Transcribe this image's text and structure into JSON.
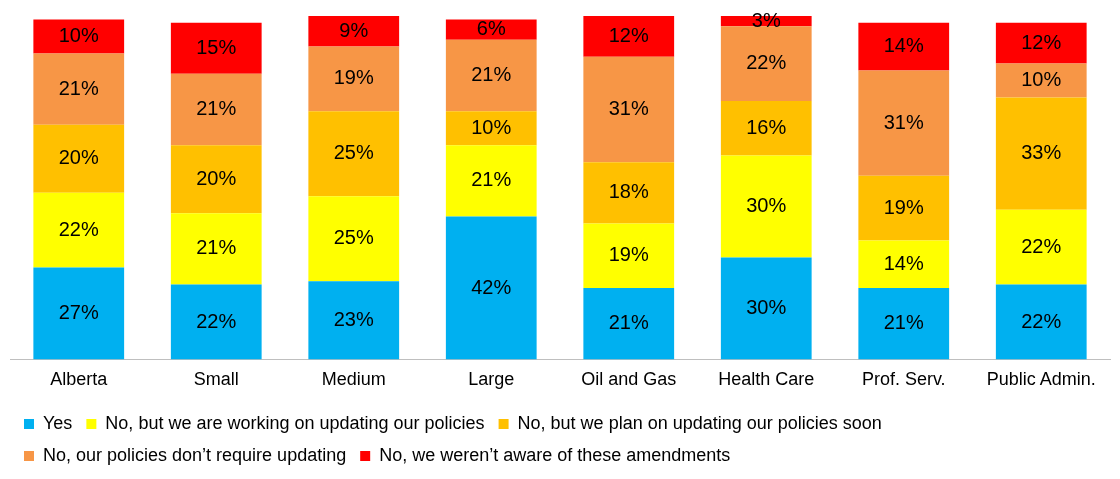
{
  "chart_data": {
    "type": "bar",
    "stacked": true,
    "legend": "bottom",
    "grid": false,
    "tick_labels": "x",
    "categories": [
      "Alberta",
      "Small",
      "Medium",
      "Large",
      "Oil and Gas",
      "Health Care",
      "Prof. Serv.",
      "Public Admin."
    ],
    "series": [
      {
        "name": "Yes",
        "color": "#00b0f0",
        "values": [
          27,
          22,
          23,
          42,
          21,
          30,
          21,
          22
        ],
        "value_labels": [
          "27%",
          "22%",
          "23%",
          "42%",
          "21%",
          "30%",
          "21%",
          "22%"
        ]
      },
      {
        "name": "No, but we are working on updating our policies",
        "color": "#ffff00",
        "values": [
          22,
          21,
          25,
          21,
          19,
          30,
          14,
          22
        ],
        "value_labels": [
          "22%",
          "21%",
          "25%",
          "21%",
          "19%",
          "30%",
          "14%",
          "22%"
        ]
      },
      {
        "name": "No, but we plan on updating our policies soon",
        "color": "#ffc000",
        "values": [
          20,
          20,
          25,
          10,
          18,
          16,
          19,
          33
        ],
        "value_labels": [
          "20%",
          "20%",
          "25%",
          "10%",
          "18%",
          "16%",
          "19%",
          "33%"
        ]
      },
      {
        "name": "No, our policies don’t require updating",
        "color": "#f79646",
        "values": [
          21,
          21,
          19,
          21,
          31,
          22,
          31,
          10
        ],
        "value_labels": [
          "21%",
          "21%",
          "19%",
          "21%",
          "31%",
          "22%",
          "31%",
          "10%"
        ]
      },
      {
        "name": "No, we weren’t aware of these amendments",
        "color": "#ff0000",
        "values": [
          10,
          15,
          9,
          6,
          12,
          3,
          14,
          12
        ],
        "value_labels": [
          "10%",
          "15%",
          "9%",
          "6%",
          "12%",
          "3%",
          "14%",
          "12%"
        ]
      }
    ]
  }
}
